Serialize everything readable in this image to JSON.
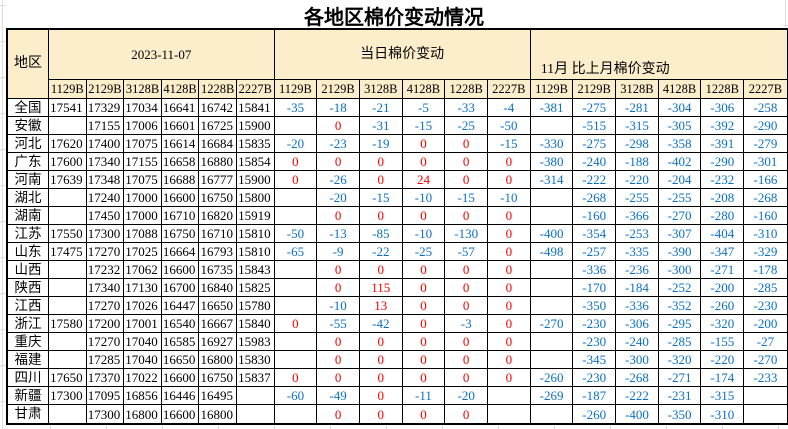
{
  "title": "各地区棉价变动情况",
  "colors": {
    "header_bg": "#FCEDCB",
    "negative_text": "#0B70C8",
    "non_negative_text": "#FE0000",
    "price_text": "#000000"
  },
  "table": {
    "region_header": "地区",
    "sections": [
      {
        "label": "2023-11-07",
        "columns": [
          "1129B",
          "2129B",
          "3128B",
          "4128B",
          "1228B",
          "2227B"
        ]
      },
      {
        "label": "当日棉价变动",
        "columns": [
          "1129B",
          "2129B",
          "3128B",
          "4128B",
          "1228B",
          "2227B"
        ]
      },
      {
        "label": "11月 比上月棉价变动",
        "columns": [
          "1129B",
          "2129B",
          "3128B",
          "4128B",
          "1228B",
          "2227B"
        ]
      }
    ],
    "rows": [
      {
        "region": "全国",
        "prices": [
          "17541",
          "17329",
          "17034",
          "16641",
          "16742",
          "15841"
        ],
        "daily": [
          "-35",
          "-18",
          "-21",
          "-5",
          "-33",
          "-4"
        ],
        "monthly": [
          "-381",
          "-275",
          "-281",
          "-304",
          "-306",
          "-258"
        ]
      },
      {
        "region": "安徽",
        "prices": [
          "",
          "17155",
          "17006",
          "16601",
          "16725",
          "15900"
        ],
        "daily": [
          "",
          "0",
          "-31",
          "-15",
          "-25",
          "-50"
        ],
        "monthly": [
          "",
          "-515",
          "-315",
          "-305",
          "-392",
          "-290"
        ]
      },
      {
        "region": "河北",
        "prices": [
          "17620",
          "17400",
          "17075",
          "16614",
          "16684",
          "15835"
        ],
        "daily": [
          "-20",
          "-23",
          "-19",
          "0",
          "0",
          "-15"
        ],
        "monthly": [
          "-330",
          "-275",
          "-298",
          "-358",
          "-391",
          "-279"
        ]
      },
      {
        "region": "广东",
        "prices": [
          "17600",
          "17340",
          "17155",
          "16658",
          "16880",
          "15854"
        ],
        "daily": [
          "0",
          "0",
          "0",
          "0",
          "0",
          "0"
        ],
        "monthly": [
          "-380",
          "-240",
          "-188",
          "-402",
          "-290",
          "-301"
        ]
      },
      {
        "region": "河南",
        "prices": [
          "17639",
          "17348",
          "17075",
          "16688",
          "16777",
          "15900"
        ],
        "daily": [
          "0",
          "-26",
          "0",
          "24",
          "0",
          "0"
        ],
        "monthly": [
          "-314",
          "-222",
          "-220",
          "-204",
          "-232",
          "-166"
        ]
      },
      {
        "region": "湖北",
        "prices": [
          "",
          "17240",
          "17000",
          "16600",
          "16750",
          "15800"
        ],
        "daily": [
          "",
          "-20",
          "-15",
          "-10",
          "-15",
          "-10"
        ],
        "monthly": [
          "",
          "-268",
          "-255",
          "-255",
          "-208",
          "-268"
        ]
      },
      {
        "region": "湖南",
        "prices": [
          "",
          "17450",
          "17000",
          "16710",
          "16820",
          "15919"
        ],
        "daily": [
          "",
          "0",
          "0",
          "0",
          "0",
          "0"
        ],
        "monthly": [
          "",
          "-160",
          "-366",
          "-270",
          "-280",
          "-160"
        ]
      },
      {
        "region": "江苏",
        "prices": [
          "17550",
          "17300",
          "17088",
          "16750",
          "16710",
          "15810"
        ],
        "daily": [
          "-50",
          "-13",
          "-85",
          "-10",
          "-130",
          "0"
        ],
        "monthly": [
          "-400",
          "-354",
          "-253",
          "-307",
          "-404",
          "-310"
        ]
      },
      {
        "region": "山东",
        "prices": [
          "17475",
          "17270",
          "17025",
          "16664",
          "16793",
          "15810"
        ],
        "daily": [
          "-65",
          "-9",
          "-22",
          "-25",
          "-57",
          "0"
        ],
        "monthly": [
          "-498",
          "-257",
          "-335",
          "-390",
          "-347",
          "-329"
        ]
      },
      {
        "region": "山西",
        "prices": [
          "",
          "17232",
          "17062",
          "16600",
          "16735",
          "15843"
        ],
        "daily": [
          "",
          "0",
          "0",
          "0",
          "0",
          "0"
        ],
        "monthly": [
          "",
          "-336",
          "-236",
          "-300",
          "-271",
          "-178"
        ]
      },
      {
        "region": "陕西",
        "prices": [
          "",
          "17340",
          "17130",
          "16700",
          "16840",
          "15825"
        ],
        "daily": [
          "",
          "0",
          "115",
          "0",
          "0",
          "0"
        ],
        "monthly": [
          "",
          "-170",
          "-184",
          "-252",
          "-200",
          "-285"
        ]
      },
      {
        "region": "江西",
        "prices": [
          "",
          "17270",
          "17026",
          "16447",
          "16650",
          "15780"
        ],
        "daily": [
          "",
          "-10",
          "13",
          "0",
          "0",
          "0"
        ],
        "monthly": [
          "",
          "-350",
          "-336",
          "-352",
          "-260",
          "-230"
        ]
      },
      {
        "region": "浙江",
        "prices": [
          "17580",
          "17200",
          "17001",
          "16540",
          "16667",
          "15840"
        ],
        "daily": [
          "0",
          "-55",
          "-42",
          "0",
          "-3",
          "0"
        ],
        "monthly": [
          "-270",
          "-230",
          "-306",
          "-295",
          "-320",
          "-200"
        ]
      },
      {
        "region": "重庆",
        "prices": [
          "",
          "17270",
          "17040",
          "16585",
          "16927",
          "15983"
        ],
        "daily": [
          "",
          "0",
          "0",
          "0",
          "0",
          "0"
        ],
        "monthly": [
          "",
          "-230",
          "-240",
          "-285",
          "-155",
          "-27"
        ]
      },
      {
        "region": "福建",
        "prices": [
          "",
          "17285",
          "17040",
          "16650",
          "16800",
          "15830"
        ],
        "daily": [
          "",
          "0",
          "0",
          "0",
          "0",
          "0"
        ],
        "monthly": [
          "",
          "-345",
          "-300",
          "-320",
          "-220",
          "-270"
        ]
      },
      {
        "region": "四川",
        "prices": [
          "17650",
          "17370",
          "17022",
          "16600",
          "16750",
          "15837"
        ],
        "daily": [
          "0",
          "0",
          "0",
          "0",
          "0",
          "0"
        ],
        "monthly": [
          "-260",
          "-230",
          "-268",
          "-271",
          "-174",
          "-233"
        ]
      },
      {
        "region": "新疆",
        "prices": [
          "17300",
          "17095",
          "16856",
          "16446",
          "16495",
          ""
        ],
        "daily": [
          "-60",
          "-49",
          "0",
          "-11",
          "-20",
          ""
        ],
        "monthly": [
          "-269",
          "-187",
          "-222",
          "-231",
          "-315",
          ""
        ]
      },
      {
        "region": "甘肃",
        "prices": [
          "",
          "17300",
          "16800",
          "16600",
          "16800",
          ""
        ],
        "daily": [
          "",
          "0",
          "0",
          "0",
          "0",
          ""
        ],
        "monthly": [
          "",
          "-260",
          "-400",
          "-350",
          "-310",
          ""
        ]
      }
    ]
  }
}
